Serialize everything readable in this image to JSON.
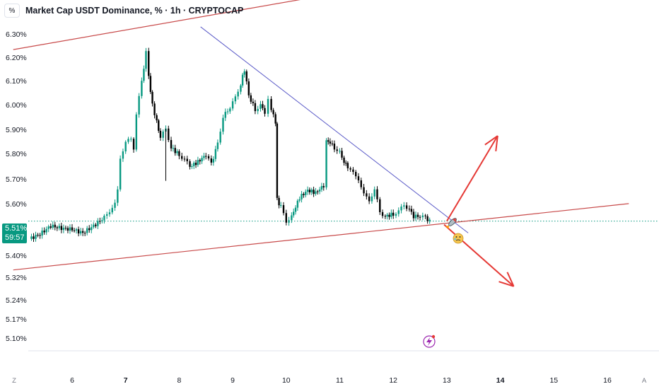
{
  "header": {
    "percent_button": "%",
    "title": "Market Cap USDT Dominance, % · 1h · CRYPTOCAP"
  },
  "price_badge": {
    "value": "5.51%",
    "countdown": "59:57"
  },
  "corner_buttons": {
    "left": "Z",
    "right": "A"
  },
  "colors": {
    "up": "#089981",
    "down": "#000000",
    "channel": "#c84a4a",
    "trendline": "#5b5bc8",
    "arrow": "#e53935",
    "current_price_line": "#089981"
  },
  "icons": [
    "rocket-icon",
    "crying-emoji-icon",
    "lightning-icon"
  ],
  "chart_data": {
    "type": "candlestick",
    "interval": "1h",
    "y_ticks": [
      "6.30%",
      "6.20%",
      "6.10%",
      "6.00%",
      "5.90%",
      "5.80%",
      "5.70%",
      "5.60%",
      "5.40%",
      "5.32%",
      "5.24%",
      "5.17%",
      "5.10%"
    ],
    "x_ticks": [
      {
        "label": "6",
        "x": 6,
        "bold": false
      },
      {
        "label": "7",
        "x": 7,
        "bold": true
      },
      {
        "label": "8",
        "x": 8,
        "bold": false
      },
      {
        "label": "9",
        "x": 9,
        "bold": false
      },
      {
        "label": "10",
        "x": 10,
        "bold": false
      },
      {
        "label": "11",
        "x": 11,
        "bold": false
      },
      {
        "label": "12",
        "x": 12,
        "bold": false
      },
      {
        "label": "13",
        "x": 13,
        "bold": false
      },
      {
        "label": "14",
        "x": 14,
        "bold": true
      },
      {
        "label": "15",
        "x": 15,
        "bold": false
      },
      {
        "label": "16",
        "x": 16,
        "bold": false
      }
    ],
    "current_price": 5.51,
    "close_path": [
      [
        5.2,
        5.435
      ],
      [
        5.4,
        5.455
      ],
      [
        5.6,
        5.49
      ],
      [
        5.8,
        5.48
      ],
      [
        6.0,
        5.475
      ],
      [
        6.2,
        5.46
      ],
      [
        6.4,
        5.49
      ],
      [
        6.6,
        5.525
      ],
      [
        6.7,
        5.555
      ],
      [
        6.8,
        5.58
      ],
      [
        6.85,
        5.64
      ],
      [
        6.9,
        5.78
      ],
      [
        7.0,
        5.84
      ],
      [
        7.1,
        5.86
      ],
      [
        7.15,
        5.82
      ],
      [
        7.2,
        5.96
      ],
      [
        7.3,
        6.1
      ],
      [
        7.38,
        6.22
      ],
      [
        7.43,
        6.12
      ],
      [
        7.5,
        6.0
      ],
      [
        7.58,
        5.93
      ],
      [
        7.65,
        5.86
      ],
      [
        7.75,
        5.9
      ],
      [
        7.85,
        5.82
      ],
      [
        8.0,
        5.79
      ],
      [
        8.1,
        5.77
      ],
      [
        8.2,
        5.74
      ],
      [
        8.35,
        5.76
      ],
      [
        8.5,
        5.79
      ],
      [
        8.6,
        5.75
      ],
      [
        8.72,
        5.84
      ],
      [
        8.82,
        5.95
      ],
      [
        8.95,
        5.99
      ],
      [
        9.05,
        6.03
      ],
      [
        9.15,
        6.09
      ],
      [
        9.22,
        6.15
      ],
      [
        9.3,
        6.04
      ],
      [
        9.42,
        5.98
      ],
      [
        9.52,
        6.0
      ],
      [
        9.6,
        5.97
      ],
      [
        9.66,
        6.03
      ],
      [
        9.72,
        5.98
      ],
      [
        9.8,
        5.93
      ],
      [
        9.83,
        5.6
      ],
      [
        9.9,
        5.57
      ],
      [
        10.0,
        5.51
      ],
      [
        10.1,
        5.53
      ],
      [
        10.25,
        5.61
      ],
      [
        10.4,
        5.64
      ],
      [
        10.55,
        5.63
      ],
      [
        10.7,
        5.66
      ],
      [
        10.75,
        5.85
      ],
      [
        10.82,
        5.84
      ],
      [
        10.9,
        5.82
      ],
      [
        11.0,
        5.8
      ],
      [
        11.08,
        5.76
      ],
      [
        11.15,
        5.74
      ],
      [
        11.25,
        5.71
      ],
      [
        11.35,
        5.69
      ],
      [
        11.45,
        5.62
      ],
      [
        11.55,
        5.6
      ],
      [
        11.65,
        5.64
      ],
      [
        11.75,
        5.55
      ],
      [
        11.85,
        5.53
      ],
      [
        12.0,
        5.54
      ],
      [
        12.1,
        5.55
      ],
      [
        12.2,
        5.58
      ],
      [
        12.3,
        5.56
      ],
      [
        12.38,
        5.53
      ],
      [
        12.5,
        5.53
      ],
      [
        12.6,
        5.525
      ],
      [
        12.68,
        5.51
      ]
    ],
    "annotations": {
      "upper_channel": [
        [
          4.9,
          6.234
        ],
        [
          11.0,
          6.474
        ]
      ],
      "lower_channel": [
        [
          4.9,
          5.304
        ],
        [
          16.4,
          5.584
        ]
      ],
      "descending_trendline": [
        [
          8.4,
          6.33
        ],
        [
          13.4,
          5.46
        ]
      ],
      "arrow_up": [
        [
          13.0,
          5.51
        ],
        [
          13.95,
          5.87
        ]
      ],
      "arrow_down": [
        [
          12.95,
          5.495
        ],
        [
          14.25,
          5.235
        ]
      ]
    }
  }
}
